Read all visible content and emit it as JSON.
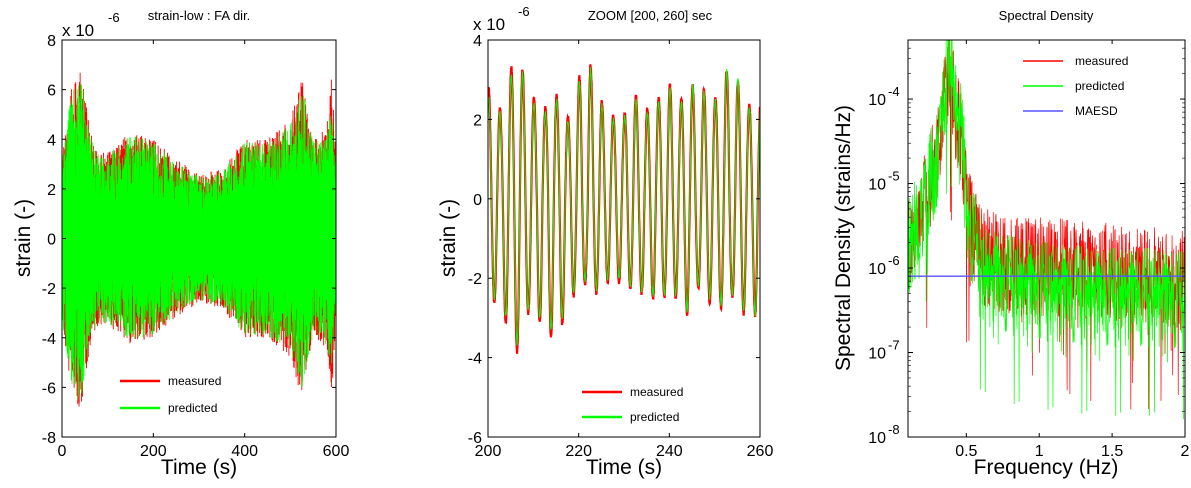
{
  "chart_data": [
    {
      "type": "line",
      "title": "strain-low : FA dir.",
      "xlabel": "Time (s)",
      "ylabel": "strain (-)",
      "multiplier": "x 10",
      "exponent": "-6",
      "xlim": [
        0,
        600
      ],
      "ylim": [
        -8,
        8
      ],
      "xticks": [
        "0",
        "200",
        "400",
        "600"
      ],
      "yticks": [
        "8",
        "6",
        "4",
        "2",
        "0",
        "-2",
        "-4",
        "-6",
        "-8"
      ],
      "legend_position": "bottom-center",
      "series": [
        {
          "name": "measured",
          "color": "#ff0000",
          "envelope_t": [
            0,
            20,
            40,
            60,
            80,
            100,
            150,
            200,
            250,
            300,
            350,
            400,
            450,
            500,
            525,
            550,
            580,
            590,
            600
          ],
          "envelope": [
            3.5,
            6.0,
            7.0,
            4.5,
            3.5,
            3.5,
            4.3,
            4.0,
            3.2,
            2.6,
            2.8,
            4.0,
            4.0,
            4.8,
            6.5,
            4.0,
            4.5,
            7.0,
            3.0
          ]
        },
        {
          "name": "predicted",
          "color": "#00ff00",
          "envelope_t": [
            0,
            20,
            40,
            60,
            80,
            100,
            150,
            200,
            250,
            300,
            350,
            400,
            450,
            500,
            525,
            550,
            580,
            590,
            600
          ],
          "envelope": [
            3.3,
            5.8,
            6.8,
            4.3,
            3.4,
            3.4,
            4.2,
            3.9,
            3.1,
            2.5,
            2.7,
            3.9,
            3.9,
            4.6,
            6.3,
            3.9,
            4.3,
            5.2,
            2.9
          ]
        }
      ]
    },
    {
      "type": "line",
      "title": "ZOOM [200, 260] sec",
      "xlabel": "Time (s)",
      "ylabel": "strain (-)",
      "multiplier": "x 10",
      "exponent": "-6",
      "xlim": [
        200,
        260
      ],
      "ylim": [
        -6,
        4
      ],
      "xticks": [
        "200",
        "220",
        "240",
        "260"
      ],
      "yticks": [
        "4",
        "2",
        "0",
        "-2",
        "-4",
        "-6"
      ],
      "legend_position": "bottom-center",
      "oscillation_period_s": 2.5,
      "series": [
        {
          "name": "measured",
          "color": "#ff0000",
          "peaks_t": [
            200,
            203,
            205,
            207,
            209,
            212,
            215,
            218,
            220,
            222,
            224,
            226,
            228,
            230,
            232,
            234,
            236,
            238,
            240,
            242,
            244,
            246,
            248,
            250,
            252,
            254,
            256,
            258,
            260
          ],
          "peaks": [
            2.8,
            2.2,
            3.3,
            3.5,
            2.7,
            2.2,
            2.6,
            2.0,
            3.0,
            3.6,
            2.8,
            2.2,
            2.1,
            2.1,
            2.8,
            2.2,
            2.3,
            2.6,
            2.9,
            2.5,
            2.6,
            3.0,
            2.7,
            2.5,
            3.2,
            3.4,
            2.6,
            2.3,
            2.5
          ],
          "troughs": [
            -2.4,
            -2.8,
            -3.5,
            -4.0,
            -2.8,
            -3.2,
            -3.6,
            -2.6,
            -2.2,
            -2.1,
            -2.4,
            -2.1,
            -2.0,
            -2.2,
            -2.3,
            -2.4,
            -2.5,
            -2.6,
            -2.3,
            -2.6,
            -2.9,
            -2.2,
            -2.4,
            -2.8,
            -2.7,
            -2.5,
            -3.0,
            -2.4,
            -3.5
          ]
        },
        {
          "name": "predicted",
          "color": "#00ff00",
          "peaks_t": [
            200,
            203,
            205,
            207,
            209,
            212,
            215,
            218,
            220,
            222,
            224,
            226,
            228,
            230,
            232,
            234,
            236,
            238,
            240,
            242,
            244,
            246,
            248,
            250,
            252,
            254,
            256,
            258,
            260
          ],
          "peaks": [
            2.6,
            2.1,
            3.1,
            3.4,
            2.6,
            2.1,
            2.5,
            1.9,
            2.9,
            3.5,
            2.7,
            2.1,
            2.0,
            2.0,
            2.7,
            2.1,
            2.2,
            2.5,
            2.8,
            2.4,
            2.5,
            3.1,
            2.6,
            2.4,
            3.0,
            3.7,
            2.5,
            2.2,
            2.4
          ],
          "troughs": [
            -2.3,
            -2.7,
            -3.3,
            -3.8,
            -2.7,
            -3.1,
            -3.4,
            -2.5,
            -2.1,
            -2.0,
            -2.3,
            -2.0,
            -1.9,
            -2.1,
            -2.2,
            -2.3,
            -2.4,
            -2.5,
            -2.2,
            -2.5,
            -2.8,
            -2.1,
            -2.3,
            -2.7,
            -2.6,
            -2.4,
            -2.9,
            -2.3,
            -3.6
          ]
        }
      ]
    },
    {
      "type": "line",
      "title": "Spectral Density",
      "xlabel": "Frequency (Hz)",
      "ylabel": "Spectral Density (strains/Hz)",
      "xscale": "linear",
      "yscale": "log",
      "xlim": [
        0.1,
        2
      ],
      "ylim": [
        1e-08,
        0.0005
      ],
      "xticks": [
        "0.5",
        "1",
        "1.5",
        "2"
      ],
      "yticks": [
        {
          "base": "10",
          "exp": "-4"
        },
        {
          "base": "10",
          "exp": "-5"
        },
        {
          "base": "10",
          "exp": "-6"
        },
        {
          "base": "10",
          "exp": "-7"
        },
        {
          "base": "10",
          "exp": "-8"
        }
      ],
      "legend_position": "top-right",
      "series": [
        {
          "name": "measured",
          "color": "#ff0000",
          "x": [
            0.1,
            0.2,
            0.3,
            0.35,
            0.38,
            0.42,
            0.5,
            0.6,
            0.8,
            1.0,
            1.2,
            1.4,
            1.6,
            1.8,
            2.0
          ],
          "y": [
            2.5e-06,
            5e-06,
            2e-05,
            8e-05,
            0.00025,
            8e-05,
            5e-06,
            1.5e-06,
            1.2e-06,
            1.2e-06,
            1.1e-06,
            1e-06,
            1e-06,
            9e-07,
            8e-07
          ]
        },
        {
          "name": "predicted",
          "color": "#00ff00",
          "x": [
            0.1,
            0.2,
            0.3,
            0.35,
            0.38,
            0.42,
            0.5,
            0.6,
            0.8,
            1.0,
            1.2,
            1.4,
            1.6,
            1.8,
            2.0
          ],
          "y": [
            2e-06,
            4.5e-06,
            2e-05,
            9e-05,
            0.00035,
            9e-05,
            4e-06,
            9e-07,
            7e-07,
            6e-07,
            5.5e-07,
            5e-07,
            5e-07,
            5e-07,
            4.5e-07
          ]
        },
        {
          "name": "MAESD",
          "color": "#5555ff",
          "x": [
            0.1,
            2.0
          ],
          "y": [
            8e-07,
            8e-07
          ]
        }
      ]
    }
  ]
}
